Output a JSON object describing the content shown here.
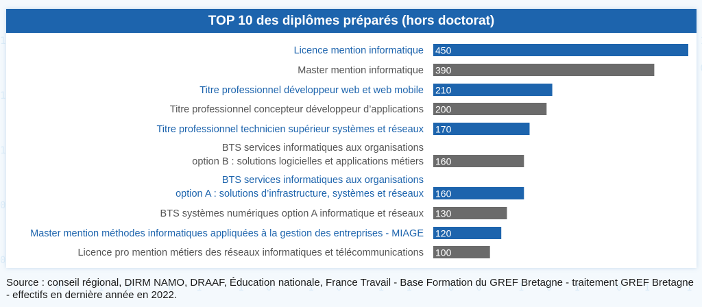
{
  "chart_data": {
    "type": "bar",
    "orientation": "horizontal",
    "title": "TOP 10 des diplômes préparés (hors doctorat)",
    "categories": [
      "Licence mention informatique",
      "Master mention informatique",
      "Titre professionnel développeur web et web mobile",
      "Titre professionnel concepteur développeur d’applications",
      "Titre professionnel technicien supérieur systèmes et réseaux",
      "BTS services informatiques aux organisations\noption B : solutions logicielles et applications métiers",
      "BTS services informatiques aux organisations\noption A : solutions d’infrastructure, systèmes et réseaux",
      "BTS systèmes numériques option A informatique et réseaux",
      "Master mention méthodes informatiques appliquées à la gestion des entreprises - MIAGE",
      "Licence pro mention métiers des réseaux informatiques et télécommunications"
    ],
    "values": [
      450,
      390,
      210,
      200,
      170,
      160,
      160,
      130,
      120,
      100
    ],
    "highlighted": [
      true,
      false,
      true,
      false,
      true,
      false,
      true,
      false,
      true,
      false
    ],
    "xlim": [
      0,
      450
    ],
    "grid": false,
    "legend": "none",
    "colors": {
      "highlight": "#1d64ad",
      "normal": "#6b6b6b",
      "highlight_text": "#1d64ad",
      "normal_text": "#555555"
    }
  },
  "source": "Source : conseil régional, DIRM NAMO, DRAAF, Éducation nationale, France Travail - Base Formation du GREF Bretagne - traitement GREF Bretagne - effectifs en dernière année en 2022."
}
